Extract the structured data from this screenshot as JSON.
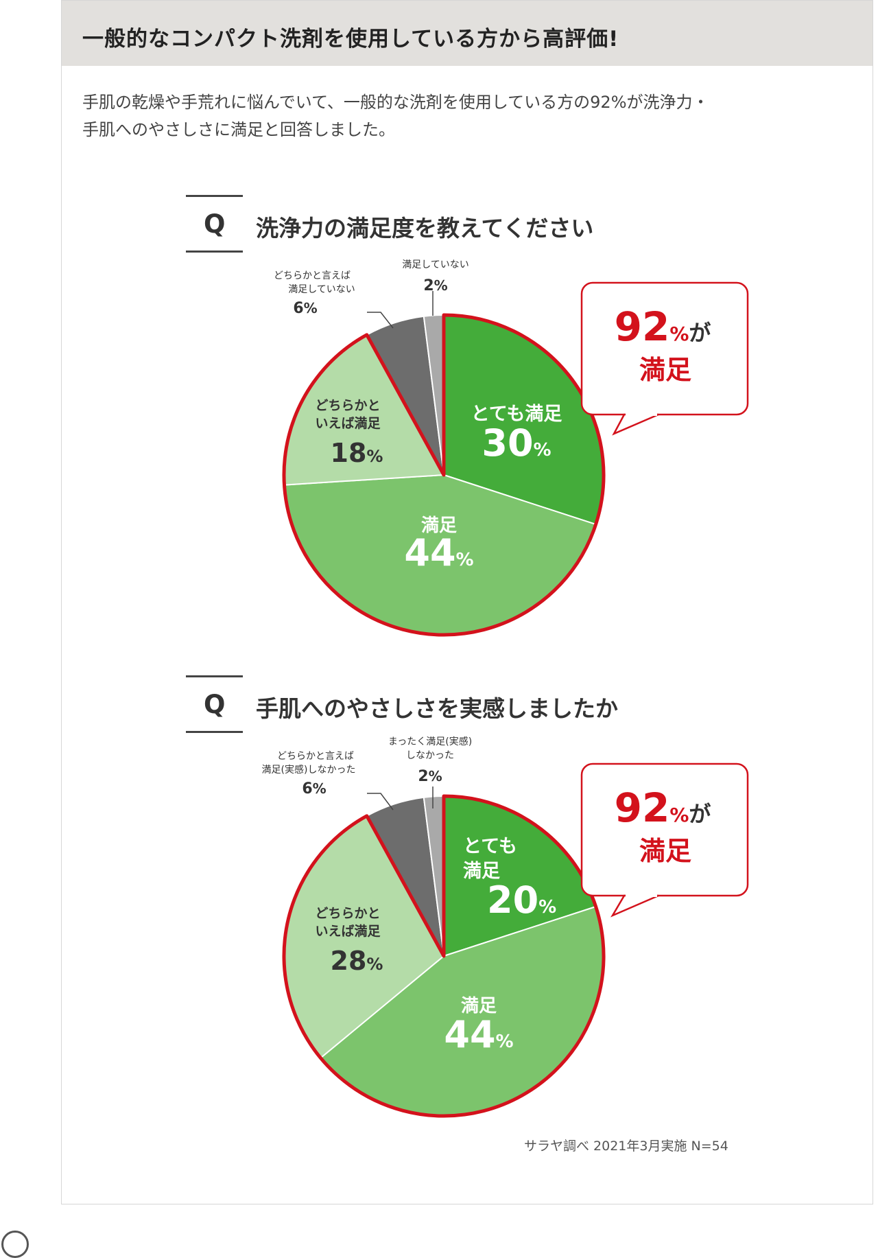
{
  "header": {
    "title": "一般的なコンパクト洗剤を使用している方から高評価!"
  },
  "intro": {
    "line1": "手肌の乾燥や手荒れに悩んでいて、一般的な洗剤を使用している方の92%が洗浄力・",
    "line2": "手肌へのやさしさに満足と回答しました。"
  },
  "colors": {
    "dark_green": "#44ac3a",
    "mid_green": "#7cc46c",
    "light_green": "#b4dca8",
    "dark_gray": "#6d6d6d",
    "light_gray": "#a9a9a9",
    "red_border": "#d3121c",
    "header_bg": "#e2e0dd"
  },
  "chart_data": [
    {
      "type": "pie",
      "question_mark": "Q",
      "title": "洗浄力の満足度を教えてください",
      "unit": "%",
      "slices": [
        {
          "label": "とても満足",
          "value": 30
        },
        {
          "label": "満足",
          "value": 44
        },
        {
          "label": "どちらかと いえば満足",
          "value": 18
        },
        {
          "label": "どちらかと言えば 満足していない",
          "value": 6
        },
        {
          "label": "満足していない",
          "value": 2
        }
      ],
      "callout": {
        "number": "92",
        "unit": "%",
        "suffix": "が",
        "line2": "満足"
      }
    },
    {
      "type": "pie",
      "question_mark": "Q",
      "title": "手肌へのやさしさを実感しましたか",
      "unit": "%",
      "slices": [
        {
          "label": "とても 満足",
          "value": 20
        },
        {
          "label": "満足",
          "value": 44
        },
        {
          "label": "どちらかと いえば満足",
          "value": 28
        },
        {
          "label": "どちらかと言えば 満足(実感)しなかった",
          "value": 6
        },
        {
          "label": "まったく満足(実感) しなかった",
          "value": 2
        }
      ],
      "callout": {
        "number": "92",
        "unit": "%",
        "suffix": "が",
        "line2": "満足"
      }
    }
  ],
  "source": "サラヤ調べ 2021年3月実施 N=54"
}
